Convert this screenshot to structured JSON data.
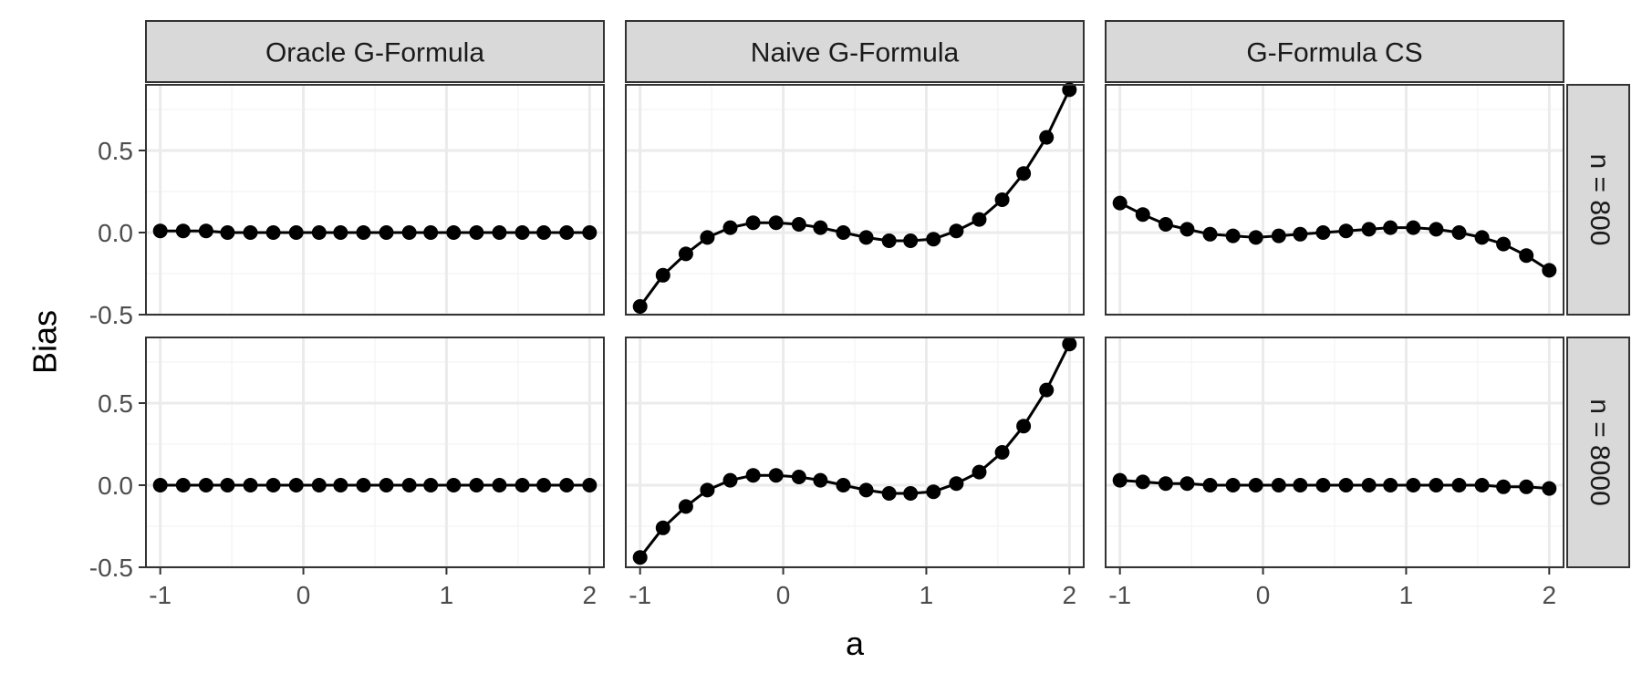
{
  "chart_data": {
    "type": "line",
    "layout": "facet grid, 2 rows x 3 columns",
    "xlabel": "a",
    "ylabel": "Bias",
    "xlim": [
      -1.1,
      2.1
    ],
    "ylim": [
      -0.5,
      0.9
    ],
    "x_ticks": [
      -1,
      0,
      1,
      2
    ],
    "x_tick_labels": [
      "-1",
      "0",
      "1",
      "2"
    ],
    "y_ticks": [
      -0.5,
      0.0,
      0.5
    ],
    "y_tick_labels": [
      "-0.5",
      "0.0",
      "0.5"
    ],
    "grid": true,
    "columns": [
      "Oracle G-Formula",
      "Naive G-Formula",
      "G-Formula CS"
    ],
    "rows": [
      "n = 800",
      "n = 8000"
    ],
    "x": [
      -1.0,
      -0.84,
      -0.68,
      -0.53,
      -0.37,
      -0.21,
      -0.05,
      0.11,
      0.26,
      0.42,
      0.58,
      0.74,
      0.89,
      1.05,
      1.21,
      1.37,
      1.53,
      1.68,
      1.84,
      2.0
    ],
    "panels": [
      {
        "row": "n = 800",
        "column": "Oracle G-Formula",
        "values": [
          0.01,
          0.01,
          0.01,
          0.0,
          0.0,
          0.0,
          0.0,
          0.0,
          0.0,
          0.0,
          0.0,
          0.0,
          0.0,
          0.0,
          0.0,
          0.0,
          0.0,
          0.0,
          0.0,
          0.0
        ]
      },
      {
        "row": "n = 800",
        "column": "Naive G-Formula",
        "values": [
          -0.45,
          -0.26,
          -0.13,
          -0.03,
          0.03,
          0.06,
          0.06,
          0.05,
          0.03,
          0.0,
          -0.03,
          -0.05,
          -0.05,
          -0.04,
          0.01,
          0.08,
          0.2,
          0.36,
          0.58,
          0.87
        ]
      },
      {
        "row": "n = 800",
        "column": "G-Formula CS",
        "values": [
          0.18,
          0.11,
          0.05,
          0.02,
          -0.01,
          -0.02,
          -0.03,
          -0.02,
          -0.01,
          0.0,
          0.01,
          0.02,
          0.03,
          0.03,
          0.02,
          0.0,
          -0.03,
          -0.07,
          -0.14,
          -0.23
        ]
      },
      {
        "row": "n = 8000",
        "column": "Oracle G-Formula",
        "values": [
          0.0,
          0.0,
          0.0,
          0.0,
          0.0,
          0.0,
          0.0,
          0.0,
          0.0,
          0.0,
          0.0,
          0.0,
          0.0,
          0.0,
          0.0,
          0.0,
          0.0,
          0.0,
          0.0,
          0.0
        ]
      },
      {
        "row": "n = 8000",
        "column": "Naive G-Formula",
        "values": [
          -0.44,
          -0.26,
          -0.13,
          -0.03,
          0.03,
          0.06,
          0.06,
          0.05,
          0.03,
          0.0,
          -0.03,
          -0.05,
          -0.05,
          -0.04,
          0.01,
          0.08,
          0.2,
          0.36,
          0.58,
          0.86
        ]
      },
      {
        "row": "n = 8000",
        "column": "G-Formula CS",
        "values": [
          0.03,
          0.02,
          0.01,
          0.01,
          0.0,
          0.0,
          0.0,
          0.0,
          0.0,
          0.0,
          0.0,
          0.0,
          0.0,
          0.0,
          0.0,
          0.0,
          0.0,
          -0.01,
          -0.01,
          -0.02
        ]
      }
    ],
    "colors": {
      "line": "#000000",
      "point": "#000000",
      "strip_fill": "#d9d9d9",
      "border": "#333333",
      "grid_major": "#ebebeb",
      "grid_minor": "#f5f5f5",
      "tick_label": "#4d4d4d"
    }
  }
}
